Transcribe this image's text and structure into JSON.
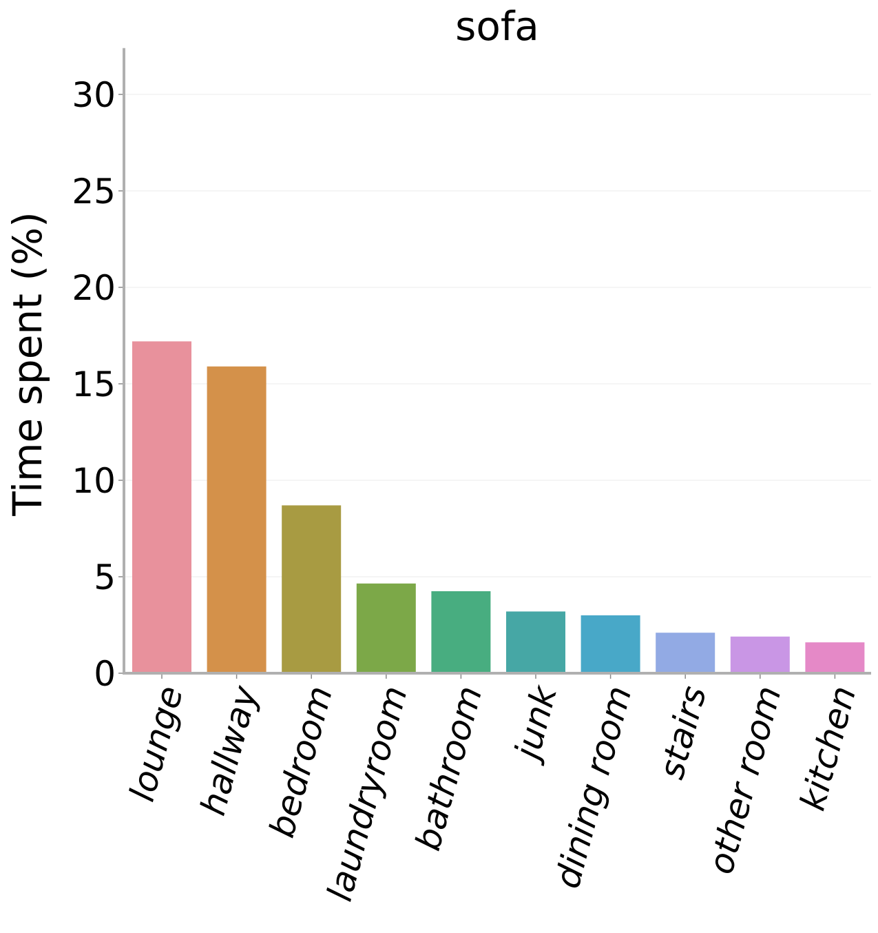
{
  "chart_data": {
    "type": "bar",
    "title": "sofa",
    "xlabel": "",
    "ylabel": "Time spent (%)",
    "ylim": [
      0,
      32.4
    ],
    "yticks": [
      0,
      5,
      10,
      15,
      20,
      25,
      30
    ],
    "grid": "horizontal",
    "categories": [
      "lounge",
      "hallway",
      "bedroom",
      "laundryroom",
      "bathroom",
      "junk",
      "dining room",
      "stairs",
      "other room",
      "kitchen"
    ],
    "values": [
      17.2,
      15.9,
      8.7,
      4.65,
      4.25,
      3.2,
      3.0,
      2.1,
      1.9,
      1.6
    ],
    "colors": [
      "#e8919c",
      "#d4914a",
      "#a89b42",
      "#7ca848",
      "#48ad80",
      "#46a7a5",
      "#48a8c8",
      "#92aae4",
      "#c996e5",
      "#e589c7"
    ]
  }
}
